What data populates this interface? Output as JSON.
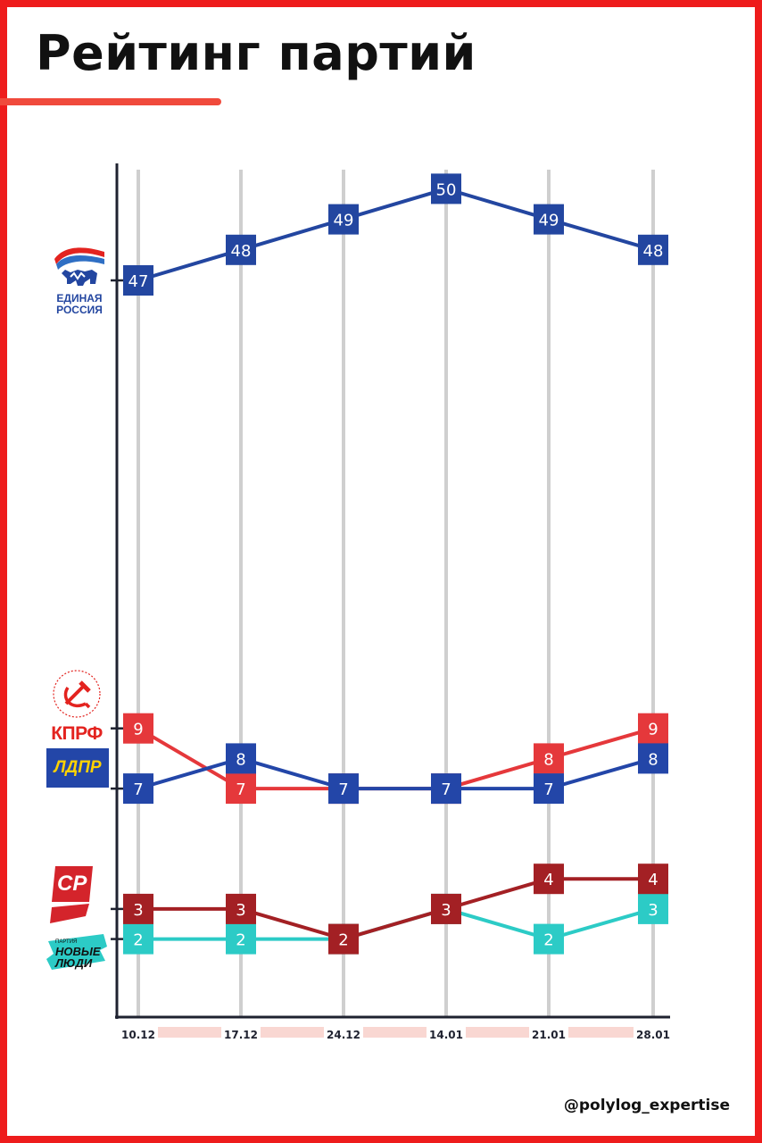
{
  "title": "Рейтинг партий",
  "source": "@polylog_expertise",
  "colors": {
    "frame": "#ee1c1c",
    "accent_underline": "#f04a3c",
    "edinaya_rossiya": "#2346a0",
    "kprf": "#e5383b",
    "ldpr": "#2346a8",
    "sr": "#a32024",
    "novye_lyudi": "#2ccbc6",
    "gridline": "#cfcfcf",
    "date_band": "#f9d7d2"
  },
  "logos": {
    "edinaya_rossiya": {
      "icon": "bear-flag-icon",
      "text": "ЕДИНАЯ РОССИЯ"
    },
    "kprf": {
      "icon": "hammer-sickle-icon",
      "text": "КПРФ"
    },
    "ldpr": {
      "text": "ЛДПР"
    },
    "sr": {
      "text": "СР"
    },
    "novye_lyudi": {
      "small": "ПАРТИЯ",
      "text": "НОВЫЕ ЛЮДИ"
    }
  },
  "chart_data": {
    "type": "line",
    "categories": [
      "10.12",
      "17.12",
      "24.12",
      "14.01",
      "21.01",
      "28.01"
    ],
    "series": [
      {
        "id": "er",
        "values": [
          47,
          48,
          49,
          50,
          49,
          48
        ],
        "color": "#2346a0",
        "labels": [
          "47",
          "48",
          "49",
          "50",
          "49",
          "48"
        ]
      },
      {
        "id": "kprf",
        "values": [
          9,
          7,
          7,
          7,
          8,
          9
        ],
        "color": "#e5383b",
        "labels": [
          "9",
          "7",
          "7",
          "7",
          "8",
          "9"
        ]
      },
      {
        "id": "ldpr",
        "values": [
          7,
          8,
          7,
          7,
          7,
          8
        ],
        "color": "#2346a8",
        "labels": [
          "7",
          "8",
          "7",
          "7",
          "7",
          "8"
        ]
      },
      {
        "id": "sr",
        "values": [
          3,
          3,
          2,
          3,
          4,
          4
        ],
        "color": "#a32024",
        "labels": [
          "3",
          "3",
          "2",
          "3",
          "4",
          "4"
        ]
      },
      {
        "id": "novye_lyudi",
        "values": [
          2,
          2,
          2,
          3,
          2,
          3
        ],
        "color": "#2ccbc6",
        "labels": [
          "2",
          "2",
          "2",
          "3",
          "2",
          "3"
        ]
      }
    ],
    "grid": "vertical"
  }
}
